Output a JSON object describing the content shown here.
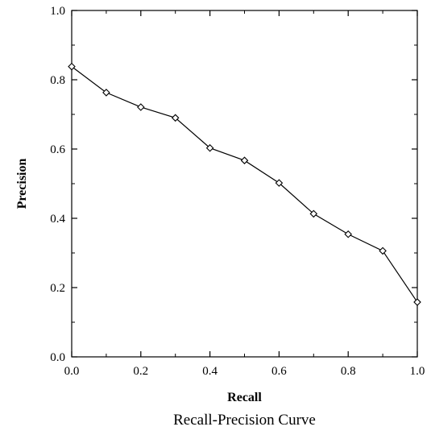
{
  "chart_data": {
    "type": "line",
    "title": "Recall-Precision Curve",
    "xlabel": "Recall",
    "ylabel": "Precision",
    "xlim": [
      0.0,
      1.0
    ],
    "ylim": [
      0.0,
      1.0
    ],
    "grid": false,
    "marker": "diamond",
    "xticks": [
      "0.0",
      "0.2",
      "0.4",
      "0.6",
      "0.8",
      "1.0"
    ],
    "yticks": [
      "0.0",
      "0.2",
      "0.4",
      "0.6",
      "0.8",
      "1.0"
    ],
    "x": [
      0.0,
      0.1,
      0.2,
      0.3,
      0.4,
      0.5,
      0.6,
      0.7,
      0.8,
      0.9,
      1.0
    ],
    "series": [
      {
        "values": [
          0.838,
          0.763,
          0.721,
          0.69,
          0.603,
          0.567,
          0.502,
          0.413,
          0.354,
          0.306,
          0.158
        ]
      }
    ]
  }
}
